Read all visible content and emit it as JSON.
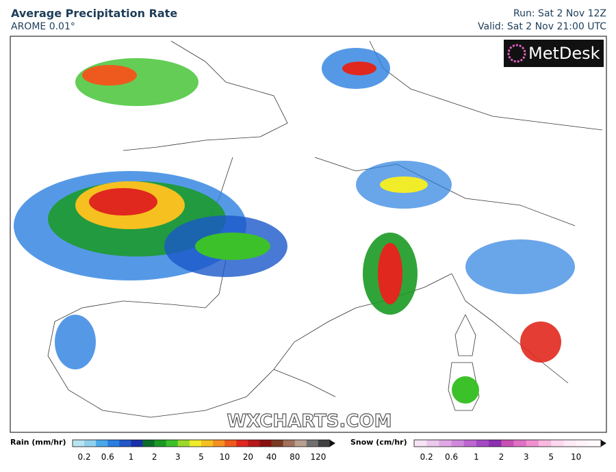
{
  "header": {
    "title": "Average Precipitation Rate",
    "subtitle": "AROME 0.01°",
    "run": "Run: Sat 2 Nov 12Z",
    "valid": "Valid: Sat 2 Nov 21:00 UTC"
  },
  "logo": "MetDesk",
  "watermark": "WXCHARTS.COM",
  "rain_legend": {
    "label": "Rain (mm/hr)",
    "ticks": [
      "0.2",
      "0.6",
      "1",
      "2",
      "3",
      "5",
      "10",
      "20",
      "40",
      "80",
      "120"
    ],
    "colors": [
      "#b8e4f0",
      "#8fd0ee",
      "#4aa8ea",
      "#2a7fe0",
      "#1f57c9",
      "#1a2fa8",
      "#0a6e2a",
      "#1a9a22",
      "#3cc12a",
      "#9ad82a",
      "#f0ec2a",
      "#f5c020",
      "#f59020",
      "#ee5a1e",
      "#e0281e",
      "#b81818",
      "#8a1010",
      "#7a3a22",
      "#a0705a",
      "#b8a090",
      "#707070",
      "#404040"
    ]
  },
  "snow_legend": {
    "label": "Snow (cm/hr)",
    "ticks": [
      "0.2",
      "0.6",
      "1",
      "2",
      "3",
      "5",
      "10"
    ],
    "colors": [
      "#f6e4f4",
      "#ecc8ec",
      "#e0a8e4",
      "#d088dc",
      "#bc66d2",
      "#a448c4",
      "#8a30b0",
      "#c850b4",
      "#e070c4",
      "#f090d0",
      "#f8b8e0",
      "#fcd8ee",
      "#fdeaf5",
      "#fff4fa",
      "#fffafd"
    ]
  }
}
